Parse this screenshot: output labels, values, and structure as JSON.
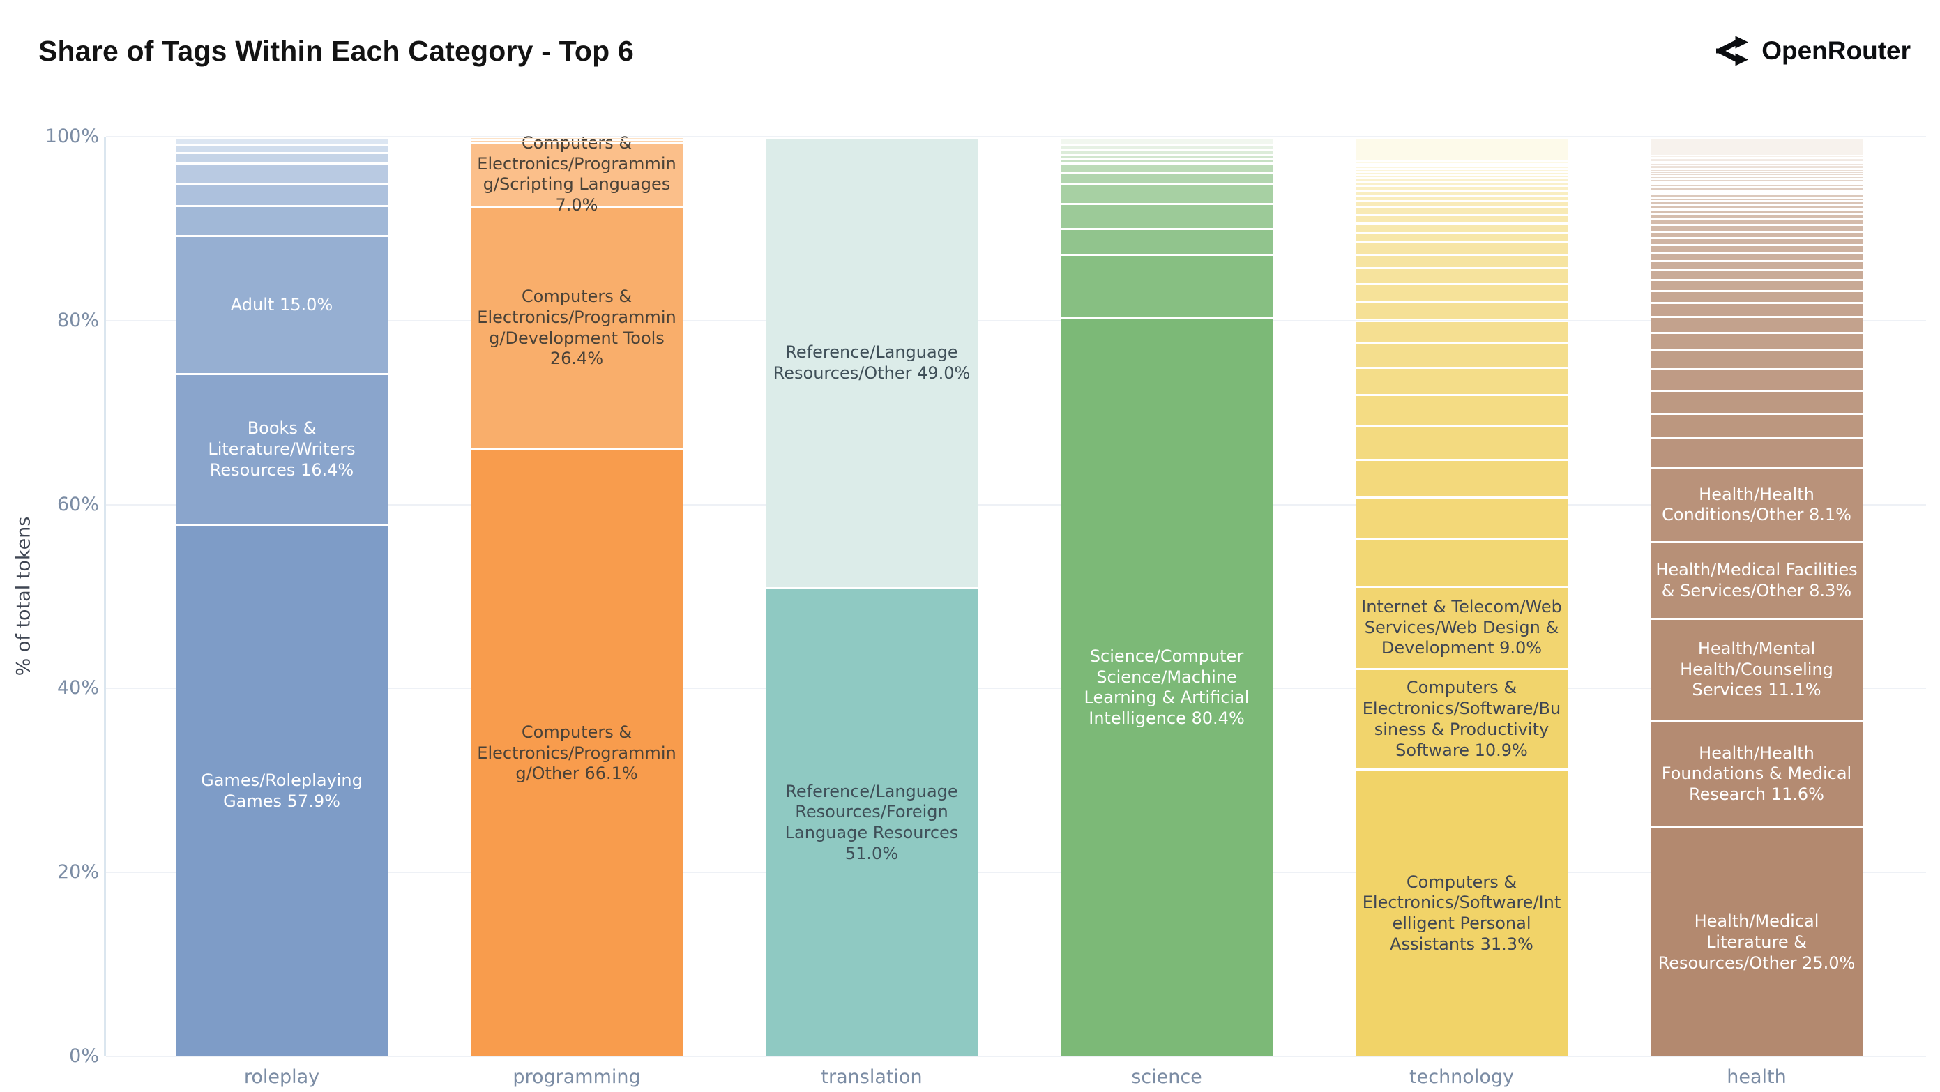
{
  "page": {
    "title": "Share of Tags Within Each Category - Top 6",
    "brand": {
      "name": "OpenRouter",
      "icon": "openrouter-fork-icon"
    }
  },
  "axis": {
    "y_title": "% of total tokens",
    "y_tick_values": [
      0,
      20,
      40,
      60,
      80,
      100
    ],
    "y_tick_labels": [
      "0%",
      "20%",
      "40%",
      "60%",
      "80%",
      "100%"
    ]
  },
  "colors": {
    "background": "#ffffff",
    "gridline": "#eef1f6",
    "axis_line": "#dbe6ef",
    "tick_text": "#7b8ca4",
    "y_title_text": "#3f4653",
    "title_text": "#131313",
    "brand_text": "#0b0d10"
  },
  "chart_data": {
    "type": "bar",
    "stacked": true,
    "title": "Share of Tags Within Each Category - Top 6",
    "ylabel": "% of total tokens",
    "ylim": [
      0,
      100
    ],
    "grid": true,
    "categories": [
      "roleplay",
      "programming",
      "translation",
      "science",
      "technology",
      "health"
    ],
    "bars": [
      {
        "category": "roleplay",
        "color_from": "#7E9CC7",
        "color_to": "#DCE6F2",
        "label_color": "#FFFFFF",
        "segments": [
          {
            "pct": 57.9,
            "label": "Games/Roleplaying Games 57.9%"
          },
          {
            "pct": 16.4,
            "label": "Books & Literature/Writers Resources 16.4%"
          },
          {
            "pct": 15.0,
            "label": "Adult 15.0%"
          },
          {
            "pct": 3.3
          },
          {
            "pct": 2.4
          },
          {
            "pct": 2.2
          },
          {
            "pct": 1.1
          },
          {
            "pct": 0.9
          },
          {
            "pct": 0.8
          }
        ]
      },
      {
        "category": "programming",
        "color_from": "#F89C4D",
        "color_to": "#FDE2C6",
        "label_color": "#4A4238",
        "segments": [
          {
            "pct": 66.1,
            "label": "Computers & Electronics/Programming/Other 66.1%"
          },
          {
            "pct": 26.4,
            "label": "Computers & Electronics/Programming/Development Tools 26.4%"
          },
          {
            "pct": 7.0,
            "label": "Computers & Electronics/Programming/Scripting Languages 7.0%"
          },
          {
            "pct": 0.3
          },
          {
            "pct": 0.2
          }
        ]
      },
      {
        "category": "translation",
        "color_from": "#8FC9C2",
        "color_to": "#DCECE9",
        "label_color": "#3F4F58",
        "segments": [
          {
            "pct": 51.0,
            "label": "Reference/Language Resources/Foreign Language Resources 51.0%"
          },
          {
            "pct": 49.0,
            "label": "Reference/Language Resources/Other 49.0%"
          }
        ]
      },
      {
        "category": "science",
        "color_from": "#7CB977",
        "color_to": "#F1F7EF",
        "label_color": "#FFFFFF",
        "segments": [
          {
            "pct": 80.4,
            "label": "Science/Computer Science/Machine Learning & Artificial Intelligence 80.4%"
          },
          {
            "pct": 6.9
          },
          {
            "pct": 2.8
          },
          {
            "pct": 2.7
          },
          {
            "pct": 2.1
          },
          {
            "pct": 1.2
          },
          {
            "pct": 1.1
          },
          {
            "pct": 0.5
          },
          {
            "pct": 0.4
          },
          {
            "pct": 0.5
          },
          {
            "pct": 0.6
          },
          {
            "pct": 0.8
          }
        ]
      },
      {
        "category": "technology",
        "color_from": "#F1D368",
        "color_to": "#FDFAEA",
        "label_color": "#3F4653",
        "segments": [
          {
            "pct": 31.3,
            "label": "Computers & Electronics/Software/Intelligent Personal Assistants 31.3%"
          },
          {
            "pct": 10.9,
            "label": "Computers & Electronics/Software/Business & Productivity Software 10.9%"
          },
          {
            "pct": 9.0,
            "label": "Internet & Telecom/Web Services/Web Design & Development 9.0%"
          },
          {
            "pct": 5.2
          },
          {
            "pct": 4.5
          },
          {
            "pct": 4.1
          },
          {
            "pct": 3.7
          },
          {
            "pct": 3.3
          },
          {
            "pct": 3.0
          },
          {
            "pct": 2.7
          },
          {
            "pct": 2.4
          },
          {
            "pct": 2.1
          },
          {
            "pct": 1.9
          },
          {
            "pct": 1.7
          },
          {
            "pct": 1.5
          },
          {
            "pct": 1.3
          },
          {
            "pct": 1.1
          },
          {
            "pct": 1.0
          },
          {
            "pct": 0.9
          },
          {
            "pct": 0.8
          },
          {
            "pct": 0.7
          },
          {
            "pct": 0.6
          },
          {
            "pct": 0.55
          },
          {
            "pct": 0.5
          },
          {
            "pct": 0.45
          },
          {
            "pct": 0.4
          },
          {
            "pct": 0.35
          },
          {
            "pct": 0.35
          },
          {
            "pct": 0.3
          },
          {
            "pct": 0.3
          },
          {
            "pct": 0.25
          },
          {
            "pct": 0.25
          },
          {
            "pct": 2.6
          }
        ]
      },
      {
        "category": "health",
        "color_from": "#B3896F",
        "color_to": "#F7F2ED",
        "label_color": "#FFFFFF",
        "segments": [
          {
            "pct": 25.0,
            "label": "Health/Medical Literature & Resources/Other 25.0%"
          },
          {
            "pct": 11.6,
            "label": "Health/Health Foundations & Medical Research 11.6%"
          },
          {
            "pct": 11.1,
            "label": "Health/Mental Health/Counseling Services 11.1%"
          },
          {
            "pct": 8.3,
            "label": "Health/Medical Facilities & Services/Other 8.3%"
          },
          {
            "pct": 8.1,
            "label": "Health/Health Conditions/Other 8.1%"
          },
          {
            "pct": 3.2
          },
          {
            "pct": 2.7
          },
          {
            "pct": 2.5
          },
          {
            "pct": 2.3
          },
          {
            "pct": 2.1
          },
          {
            "pct": 1.9
          },
          {
            "pct": 1.7
          },
          {
            "pct": 1.5
          },
          {
            "pct": 1.3
          },
          {
            "pct": 1.2
          },
          {
            "pct": 1.1
          },
          {
            "pct": 1.0
          },
          {
            "pct": 0.9
          },
          {
            "pct": 0.8
          },
          {
            "pct": 0.8
          },
          {
            "pct": 0.7
          },
          {
            "pct": 0.7
          },
          {
            "pct": 0.6
          },
          {
            "pct": 0.6
          },
          {
            "pct": 0.5
          },
          {
            "pct": 0.5
          },
          {
            "pct": 0.4
          },
          {
            "pct": 0.4
          },
          {
            "pct": 0.4
          },
          {
            "pct": 0.35
          },
          {
            "pct": 0.35
          },
          {
            "pct": 0.35
          },
          {
            "pct": 0.3
          },
          {
            "pct": 0.3
          },
          {
            "pct": 0.3
          },
          {
            "pct": 0.25
          },
          {
            "pct": 0.25
          },
          {
            "pct": 0.25
          },
          {
            "pct": 0.2
          },
          {
            "pct": 0.2
          },
          {
            "pct": 0.2
          },
          {
            "pct": 0.2
          },
          {
            "pct": 0.15
          },
          {
            "pct": 0.15
          },
          {
            "pct": 0.15
          },
          {
            "pct": 0.15
          },
          {
            "pct": 2.0
          }
        ]
      }
    ]
  }
}
